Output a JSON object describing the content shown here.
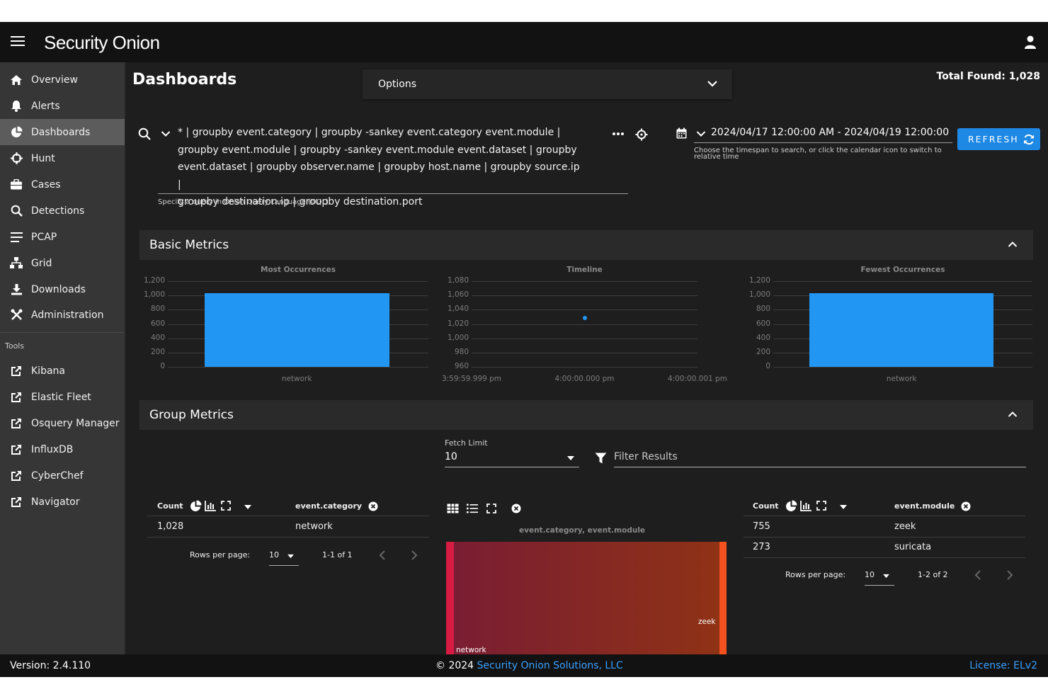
{
  "app": {
    "logo_text": "Security Onion"
  },
  "sidebar": {
    "items": [
      {
        "label": "Overview",
        "icon": "home-icon"
      },
      {
        "label": "Alerts",
        "icon": "bell-icon"
      },
      {
        "label": "Dashboards",
        "icon": "pie-chart-icon"
      },
      {
        "label": "Hunt",
        "icon": "crosshairs-icon"
      },
      {
        "label": "Cases",
        "icon": "briefcase-icon"
      },
      {
        "label": "Detections",
        "icon": "search-icon"
      },
      {
        "label": "PCAP",
        "icon": "bars-icon"
      },
      {
        "label": "Grid",
        "icon": "network-icon"
      },
      {
        "label": "Downloads",
        "icon": "download-icon"
      },
      {
        "label": "Administration",
        "icon": "tools-icon"
      }
    ],
    "tools_label": "Tools",
    "tools": [
      {
        "label": "Kibana"
      },
      {
        "label": "Elastic Fleet"
      },
      {
        "label": "Osquery Manager"
      },
      {
        "label": "InfluxDB"
      },
      {
        "label": "CyberChef"
      },
      {
        "label": "Navigator"
      }
    ]
  },
  "header": {
    "title": "Dashboards",
    "options_label": "Options",
    "total_found": "Total Found: 1,028"
  },
  "query": {
    "line1": "* | groupby event.category | groupby -sankey event.category event.module |",
    "line2": "groupby event.module | groupby -sankey event.module event.dataset | groupby",
    "line3": "event.dataset | groupby observer.name | groupby host.name | groupby source.ip |",
    "line4": "groupby destination.ip | groupby destination.port",
    "hint": "Specify a query in Onion Query Language (OQL)"
  },
  "daterange": {
    "value": "2024/04/17 12:00:00 AM - 2024/04/19 12:00:00",
    "hint": "Choose the timespan to search, or click the calendar icon to switch to relative time"
  },
  "refresh_label": "REFRESH",
  "basic_metrics": {
    "title": "Basic Metrics",
    "charts": [
      {
        "title": "Most Occurrences",
        "yticks": [
          "1,200",
          "1,000",
          "800",
          "600",
          "400",
          "200",
          "0"
        ],
        "xlabels": [
          "network"
        ]
      },
      {
        "title": "Timeline",
        "yticks": [
          "1,080",
          "1,060",
          "1,040",
          "1,020",
          "1,000",
          "980",
          "960"
        ],
        "xlabels": [
          "3:59:59.999 pm",
          "4:00:00.000 pm",
          "4:00:00.001 pm"
        ]
      },
      {
        "title": "Fewest Occurrences",
        "yticks": [
          "1,200",
          "1,000",
          "800",
          "600",
          "400",
          "200",
          "0"
        ],
        "xlabels": [
          "network"
        ]
      }
    ]
  },
  "chart_data": [
    {
      "type": "bar",
      "title": "Most Occurrences",
      "categories": [
        "network"
      ],
      "values": [
        1028
      ],
      "ylim": [
        0,
        1200
      ]
    },
    {
      "type": "scatter",
      "title": "Timeline",
      "x": [
        "4:00:00.000 pm"
      ],
      "y": [
        1028
      ],
      "ylim": [
        960,
        1080
      ]
    },
    {
      "type": "bar",
      "title": "Fewest Occurrences",
      "categories": [
        "network"
      ],
      "values": [
        1028
      ],
      "ylim": [
        0,
        1200
      ]
    }
  ],
  "group_metrics": {
    "title": "Group Metrics",
    "fetch_limit_label": "Fetch Limit",
    "fetch_limit_value": "10",
    "filter_placeholder": "Filter Results",
    "table1": {
      "count_header": "Count",
      "field_header": "event.category",
      "rows": [
        {
          "count": "1,028",
          "value": "network"
        }
      ],
      "rows_per_page_label": "Rows per page:",
      "rows_per_page": "10",
      "range": "1-1 of 1"
    },
    "sankey": {
      "title": "event.category, event.module",
      "left_label": "network",
      "right_label": "zeek"
    },
    "table2": {
      "count_header": "Count",
      "field_header": "event.module",
      "rows": [
        {
          "count": "755",
          "value": "zeek"
        },
        {
          "count": "273",
          "value": "suricata"
        }
      ],
      "rows_per_page_label": "Rows per page:",
      "rows_per_page": "10",
      "range": "1-2 of 2"
    }
  },
  "footer": {
    "version": "Version: 2.4.110",
    "copyright_prefix": "© 2024",
    "company": "Security Onion Solutions, LLC",
    "license": "License: ELv2"
  }
}
